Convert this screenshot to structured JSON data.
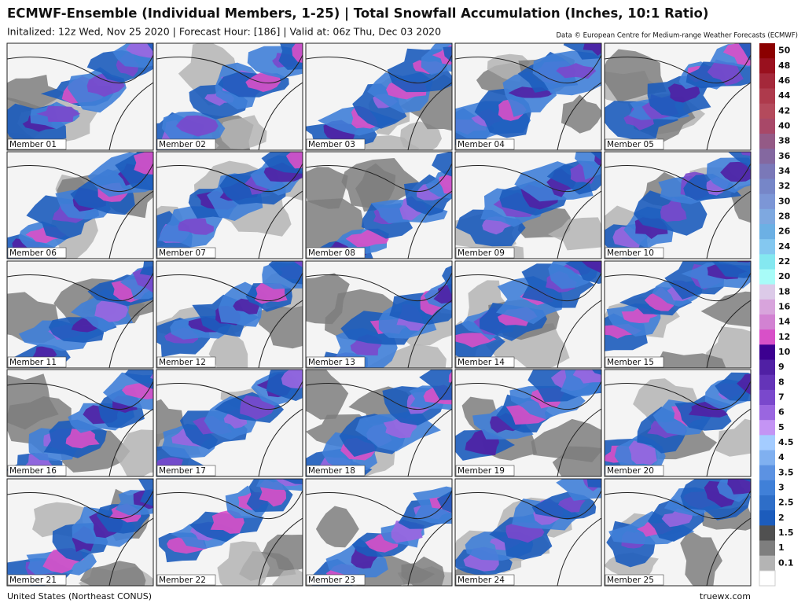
{
  "header": {
    "title": "ECMWF-Ensemble (Individual Members, 1-25) | Total Snowfall Accumulation (Inches, 10:1 Ratio)",
    "subtitle": "Initalized: 12z Wed, Nov 25 2020 | Forecast Hour: [186] | Valid at: 06z Thu, Dec 03 2020",
    "credit": "Data © European Centre for Medium-range Weather Forecasts (ECMWF)"
  },
  "members": [
    "Member 01",
    "Member 02",
    "Member 03",
    "Member 04",
    "Member 05",
    "Member 06",
    "Member 07",
    "Member 08",
    "Member 09",
    "Member 10",
    "Member 11",
    "Member 12",
    "Member 13",
    "Member 14",
    "Member 15",
    "Member 16",
    "Member 17",
    "Member 18",
    "Member 19",
    "Member 20",
    "Member 21",
    "Member 22",
    "Member 23",
    "Member 24",
    "Member 25"
  ],
  "colorbar": [
    {
      "label": "50",
      "color": "#8b0000"
    },
    {
      "label": "48",
      "color": "#99101e"
    },
    {
      "label": "46",
      "color": "#a4283a"
    },
    {
      "label": "44",
      "color": "#ae3a4c"
    },
    {
      "label": "42",
      "color": "#b44a5c"
    },
    {
      "label": "40",
      "color": "#a84868"
    },
    {
      "label": "38",
      "color": "#945a86"
    },
    {
      "label": "36",
      "color": "#8468a0"
    },
    {
      "label": "34",
      "color": "#7a78b8"
    },
    {
      "label": "32",
      "color": "#7686c8"
    },
    {
      "label": "30",
      "color": "#7c96d6"
    },
    {
      "label": "28",
      "color": "#7ea8e0"
    },
    {
      "label": "26",
      "color": "#6cb0e4"
    },
    {
      "label": "24",
      "color": "#84c8f0"
    },
    {
      "label": "22",
      "color": "#84e8f0"
    },
    {
      "label": "20",
      "color": "#a8fcf8"
    },
    {
      "label": "18",
      "color": "#dccae8"
    },
    {
      "label": "16",
      "color": "#d8a4dc"
    },
    {
      "label": "14",
      "color": "#d282d2"
    },
    {
      "label": "12",
      "color": "#d850c8"
    },
    {
      "label": "10",
      "color": "#3c0090"
    },
    {
      "label": "9",
      "color": "#5020a4"
    },
    {
      "label": "8",
      "color": "#6434b8"
    },
    {
      "label": "7",
      "color": "#7a48cc"
    },
    {
      "label": "6",
      "color": "#9a66e0"
    },
    {
      "label": "5",
      "color": "#c494f4"
    },
    {
      "label": "4.5",
      "color": "#a4ccff"
    },
    {
      "label": "4",
      "color": "#80b0f0"
    },
    {
      "label": "3.5",
      "color": "#5c92e2"
    },
    {
      "label": "3",
      "color": "#4080d8"
    },
    {
      "label": "2.5",
      "color": "#2e6ec8"
    },
    {
      "label": "2",
      "color": "#1c5cbc"
    },
    {
      "label": "1.5",
      "color": "#505050"
    },
    {
      "label": "1",
      "color": "#7e7e7e"
    },
    {
      "label": "0.1",
      "color": "#b4b4b4"
    }
  ],
  "footer": {
    "region": "United States (Northeast CONUS)",
    "site": "truewx.com"
  }
}
